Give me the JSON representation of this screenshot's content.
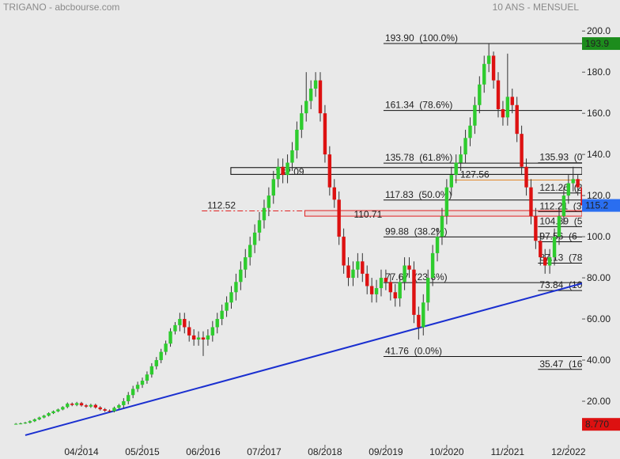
{
  "chart_data": {
    "type": "candlestick",
    "title": "TRIGANO - abcbourse.com",
    "subtitle": "10 ANS - MENSUEL",
    "up_color": "#2ecc2e",
    "down_color": "#dd1111",
    "xlim": [
      -3.4,
      120.9
    ],
    "ylim": [
      0,
      207
    ],
    "xticks": [
      {
        "value": 14,
        "label": "04/2014"
      },
      {
        "value": 27,
        "label": "05/2015"
      },
      {
        "value": 40,
        "label": "06/2016"
      },
      {
        "value": 53,
        "label": "07/2017"
      },
      {
        "value": 66,
        "label": "08/2018"
      },
      {
        "value": 79,
        "label": "09/2019"
      },
      {
        "value": 92,
        "label": "10/2020"
      },
      {
        "value": 105,
        "label": "11/2021"
      },
      {
        "value": 118,
        "label": "12/2022"
      }
    ],
    "yticks": [
      {
        "value": 20,
        "label": "20.00"
      },
      {
        "value": 40,
        "label": "40.00"
      },
      {
        "value": 60,
        "label": "60.00"
      },
      {
        "value": 80,
        "label": "80.00"
      },
      {
        "value": 100,
        "label": "100.0"
      },
      {
        "value": 120,
        "label": "120.0"
      },
      {
        "value": 140,
        "label": "140.0"
      },
      {
        "value": 160,
        "label": "160.0"
      },
      {
        "value": 180,
        "label": "180.0"
      },
      {
        "value": 200,
        "label": "200.0"
      }
    ],
    "open": [
      8.8,
      9.0,
      9.2,
      9.6,
      10.3,
      11.2,
      12.1,
      13.0,
      14.2,
      15.1,
      16.0,
      17.2,
      18.8,
      18.2,
      19.1,
      18.0,
      17.4,
      18.2,
      17.0,
      16.1,
      15.4,
      15.2,
      16.8,
      18.1,
      20,
      23,
      26,
      28,
      30,
      33,
      37,
      40,
      44,
      48,
      54,
      57,
      60,
      56,
      52,
      50,
      51,
      50,
      52,
      56,
      60,
      64,
      68,
      73,
      78,
      84,
      90,
      96,
      102,
      108,
      114,
      120,
      128,
      134,
      130,
      136,
      142,
      152,
      160,
      166,
      172,
      176,
      160,
      140,
      124,
      118,
      100,
      86,
      80,
      84,
      88,
      82,
      76,
      72,
      75,
      80,
      78,
      73,
      70,
      78,
      86,
      84,
      62,
      56,
      68,
      80,
      92,
      100,
      110,
      124,
      130,
      136,
      140,
      148,
      154,
      164,
      174,
      184,
      188,
      176,
      162,
      158,
      168,
      164,
      150,
      134,
      124,
      110,
      98,
      90,
      86,
      90,
      100,
      110,
      120,
      126,
      128,
      124
    ],
    "high": [
      9.4,
      9.6,
      10.0,
      10.7,
      11.6,
      12.5,
      13.4,
      14.6,
      15.5,
      16.4,
      17.6,
      19.4,
      19.4,
      19.7,
      19.7,
      18.6,
      18.8,
      18.8,
      17.6,
      16.7,
      16.0,
      17.4,
      18.7,
      21.5,
      24.5,
      27.5,
      29.5,
      31.5,
      34.5,
      38.5,
      41.5,
      45.5,
      49.5,
      55.5,
      58.5,
      63,
      63,
      59,
      55,
      54,
      54,
      55,
      59,
      63,
      67,
      71,
      76,
      82,
      88,
      94,
      100,
      106,
      112,
      118,
      124,
      132,
      138,
      138,
      140,
      146,
      156,
      164,
      180,
      176,
      180,
      180,
      164,
      144,
      128,
      122,
      104,
      90,
      88,
      92,
      92,
      86,
      80,
      79,
      84,
      84,
      82,
      77,
      82,
      90,
      90,
      88,
      66,
      72,
      84,
      96,
      104,
      114,
      128,
      134,
      140,
      144,
      152,
      158,
      168,
      178,
      188,
      193.9,
      190,
      180,
      166,
      189,
      172,
      168,
      154,
      138,
      128,
      114,
      102,
      94,
      94,
      104,
      114,
      124,
      130,
      134,
      130,
      127
    ],
    "low": [
      8.77,
      8.8,
      9.0,
      9.2,
      9.9,
      10.8,
      11.7,
      12.6,
      13.8,
      14.7,
      15.6,
      16.6,
      17.6,
      17.6,
      17.4,
      16.8,
      16.8,
      16.4,
      15.5,
      14.8,
      14.6,
      14.6,
      16.2,
      16.6,
      18.5,
      21.5,
      24.5,
      26.5,
      28.5,
      31.5,
      35.5,
      38.5,
      42.5,
      46.5,
      52.5,
      54,
      53,
      49,
      47,
      47,
      42,
      47,
      49,
      53,
      57,
      61,
      65,
      69,
      74,
      80,
      86,
      92,
      98,
      104,
      110,
      116,
      124,
      126,
      126,
      132,
      138,
      148,
      156,
      162,
      168,
      156,
      136,
      120,
      114,
      96,
      82,
      76,
      76,
      80,
      78,
      72,
      68,
      68,
      71,
      74,
      69,
      66,
      66,
      74,
      80,
      58,
      50,
      52,
      64,
      76,
      88,
      96,
      106,
      120,
      126,
      132,
      136,
      144,
      150,
      160,
      170,
      180,
      172,
      158,
      154,
      154,
      160,
      146,
      130,
      120,
      106,
      94,
      86,
      82,
      82,
      86,
      96,
      106,
      116,
      122,
      120,
      112
    ],
    "close": [
      9.0,
      9.2,
      9.6,
      10.3,
      11.2,
      12.1,
      13.0,
      14.2,
      15.1,
      16.0,
      17.2,
      18.8,
      18.2,
      19.1,
      18.0,
      17.4,
      18.2,
      17.0,
      16.1,
      15.4,
      15.2,
      16.8,
      18.1,
      20,
      23,
      26,
      28,
      30,
      33,
      37,
      40,
      44,
      48,
      54,
      57,
      60,
      56,
      52,
      50,
      51,
      50,
      52,
      56,
      60,
      64,
      68,
      73,
      78,
      84,
      90,
      96,
      102,
      108,
      114,
      120,
      128,
      134,
      130,
      136,
      142,
      152,
      160,
      166,
      172,
      176,
      160,
      140,
      124,
      118,
      100,
      86,
      80,
      84,
      88,
      82,
      76,
      72,
      75,
      80,
      78,
      73,
      70,
      78,
      86,
      84,
      62,
      56,
      68,
      80,
      92,
      100,
      110,
      124,
      130,
      136,
      140,
      148,
      154,
      164,
      174,
      184,
      188,
      176,
      162,
      158,
      168,
      164,
      150,
      134,
      124,
      110,
      98,
      90,
      86,
      90,
      100,
      110,
      120,
      126,
      128,
      124,
      115.2
    ],
    "trendline": {
      "color": "#1a2fd0",
      "x": [
        2,
        120.9
      ],
      "y": [
        3.5,
        77.3
      ]
    },
    "fib_retracements": [
      {
        "start": 78.5,
        "levels": [
          {
            "value": 193.9,
            "label": "193.90  (100.0%)"
          },
          {
            "value": 161.34,
            "label": "161.34  (78.6%)"
          },
          {
            "value": 135.78,
            "label": "135.78  (61.8%)"
          },
          {
            "value": 117.83,
            "label": "117.83  (50.0%)"
          },
          {
            "value": 99.88,
            "label": "99.88  (38.2%)"
          },
          {
            "value": 77.67,
            "label": "77.67  (23.6%)"
          },
          {
            "value": 41.76,
            "label": "41.76  (0.0%)"
          }
        ]
      },
      {
        "start": 111.5,
        "levels": [
          {
            "value": 135.93,
            "label": "135.93  (0"
          },
          {
            "value": 121.26,
            "label": "121.26  (2"
          },
          {
            "value": 112.21,
            "label": "112.21  (3"
          },
          {
            "value": 104.89,
            "label": "104.89  (5"
          },
          {
            "value": 97.56,
            "label": "97.56  (6"
          },
          {
            "value": 87.13,
            "label": "87.13  (78"
          },
          {
            "value": 73.84,
            "label": "73.84  (10"
          },
          {
            "value": 35.47,
            "label": "35.47  (16"
          }
        ]
      }
    ],
    "zones": [
      {
        "value": 132.09,
        "top": 133.6,
        "bottom": 130.3,
        "start": 45.9,
        "color": "#000000"
      },
      {
        "value": 110.71,
        "top": 112.7,
        "bottom": 110.0,
        "start": 61.7,
        "color": "#e02020"
      }
    ],
    "lines": [
      {
        "value": 112.52,
        "start": 39.7,
        "end": 61.7,
        "color": "#e02020",
        "dash": true
      },
      {
        "value": 127.56,
        "start": 93.7,
        "color": "#e0882a",
        "dash": false
      }
    ],
    "price_tags": [
      {
        "value": 193.9,
        "color": "#1c8c1c"
      },
      {
        "value": 115.2,
        "color": "#2a6ef0"
      },
      {
        "value": 8.77,
        "label": "8.770",
        "color": "#dd1111"
      }
    ]
  }
}
